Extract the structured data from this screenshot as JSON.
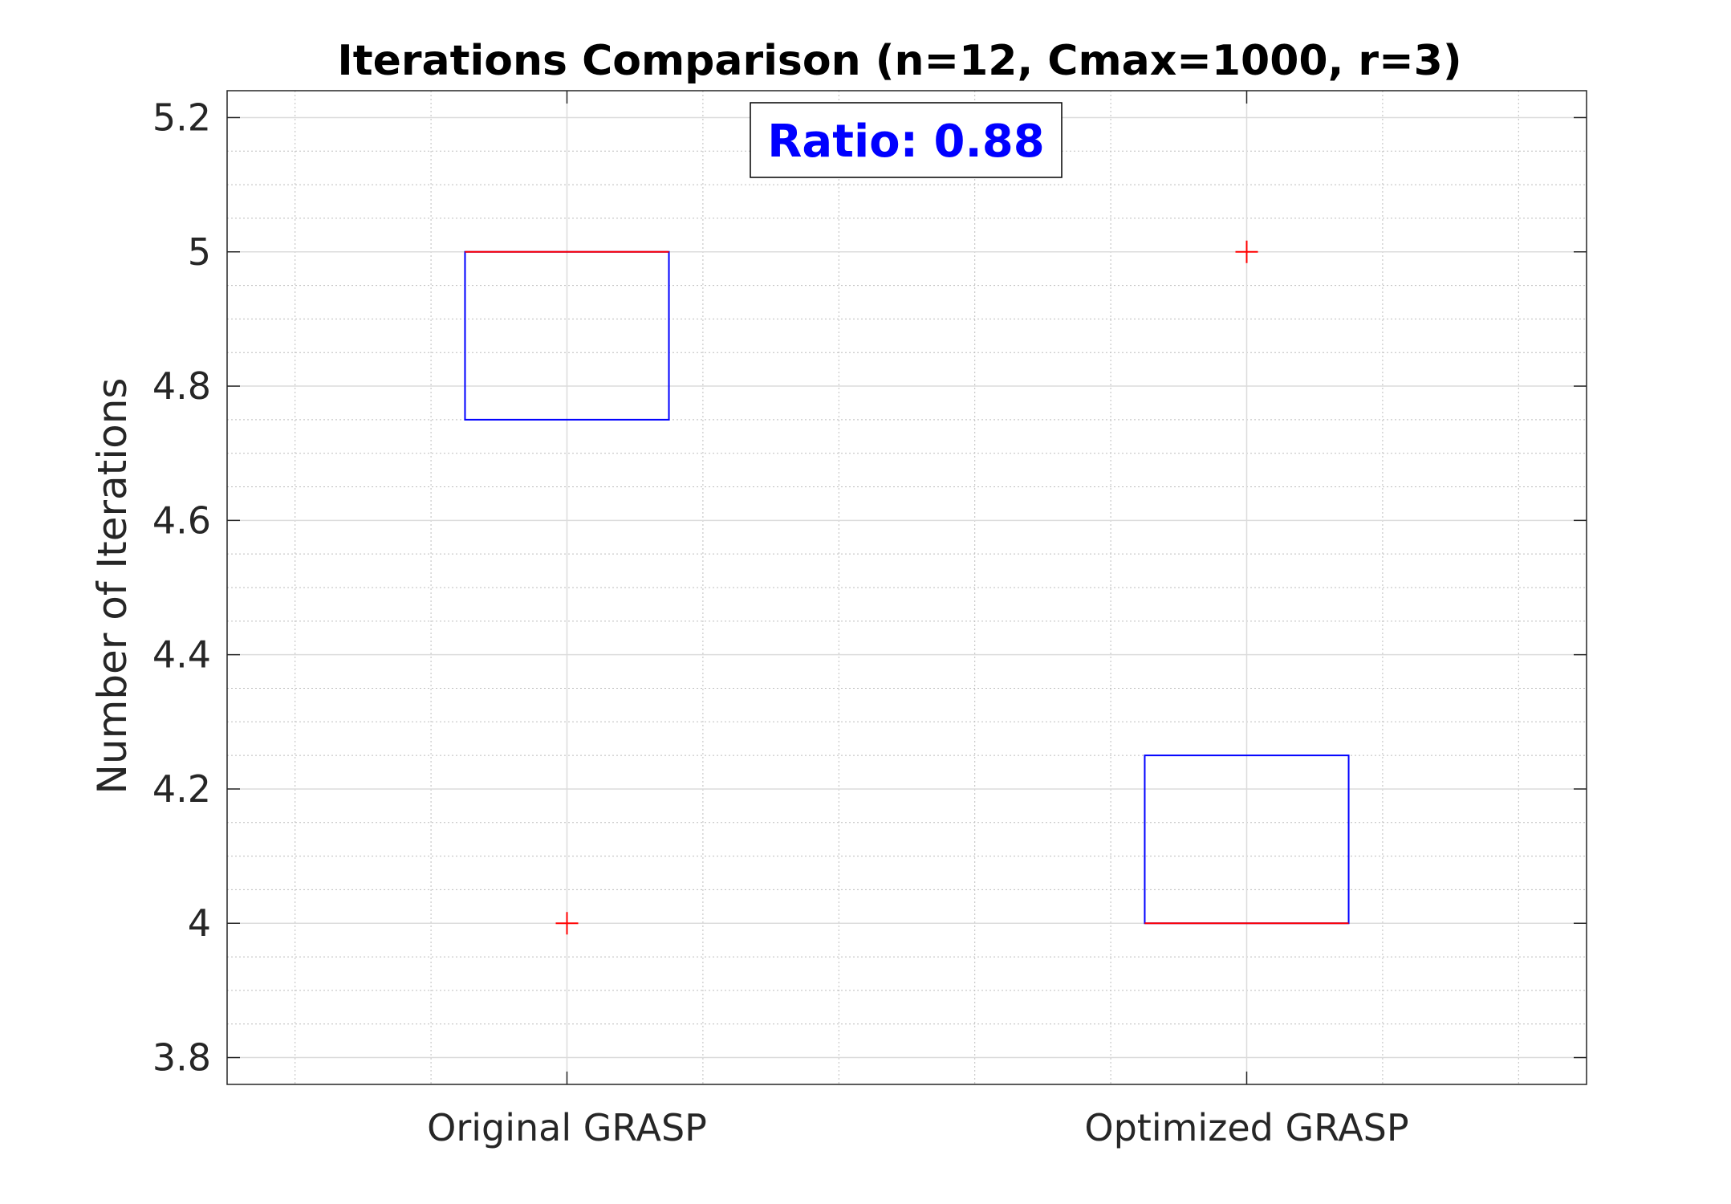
{
  "chart_data": {
    "type": "box",
    "title": "Iterations Comparison (n=12, Cmax=1000, r=3)",
    "xlabel": "",
    "ylabel": "Number of Iterations",
    "categories": [
      "Original GRASP",
      "Optimized GRASP"
    ],
    "ylim": [
      3.76,
      5.24
    ],
    "yticks": [
      3.8,
      4,
      4.2,
      4.4,
      4.6,
      4.8,
      5,
      5.2
    ],
    "ytick_labels": [
      "3.8",
      "4",
      "4.2",
      "4.4",
      "4.6",
      "4.8",
      "5",
      "5.2"
    ],
    "grid": true,
    "minor_grid": true,
    "boxes": [
      {
        "category": "Original GRASP",
        "q1": 4.75,
        "median": 5,
        "q3": 5,
        "whisker_low": 4.75,
        "whisker_high": 5,
        "outliers": [
          4
        ]
      },
      {
        "category": "Optimized GRASP",
        "q1": 4,
        "median": 4,
        "q3": 4.25,
        "whisker_low": 4,
        "whisker_high": 4.25,
        "outliers": [
          5
        ]
      }
    ],
    "annotation": "Ratio: 0.88",
    "colors": {
      "box": "#0000ff",
      "median": "#ff0000",
      "outlier": "#ff0000",
      "annotation": "#0000ff"
    }
  }
}
